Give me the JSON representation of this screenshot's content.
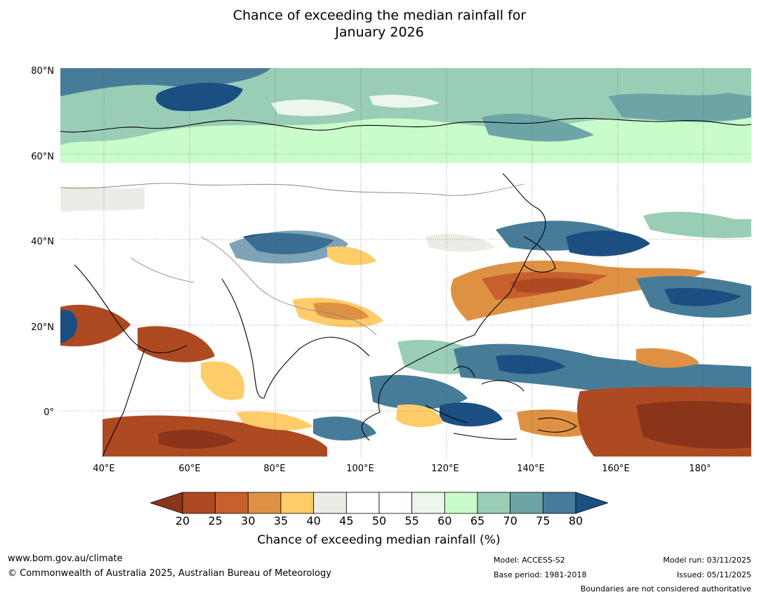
{
  "title": {
    "line1": "Chance of exceeding the median rainfall for",
    "line2": "January 2026"
  },
  "map": {
    "lat_labels": [
      "80°N",
      "60°N",
      "40°N",
      "20°N",
      "0°"
    ],
    "lon_labels": [
      "40°E",
      "60°E",
      "80°E",
      "100°E",
      "120°E",
      "140°E",
      "160°E",
      "180°"
    ],
    "lat_range": [
      -10,
      80
    ],
    "lon_range": [
      30,
      190
    ]
  },
  "colorbar": {
    "ticks": [
      "20",
      "25",
      "30",
      "35",
      "40",
      "45",
      "50",
      "55",
      "60",
      "65",
      "70",
      "75",
      "80"
    ],
    "colors": [
      "#ad4a22",
      "#c7602d",
      "#df9143",
      "#fecc69",
      "#ecebe5",
      "#ffffff",
      "#ffffff",
      "#ebf7ea",
      "#c9fccb",
      "#9acdb6",
      "#6da5a7",
      "#477c99"
    ],
    "under_color": "#8a3419",
    "over_color": "#1b4f82",
    "label": "Chance of exceeding median rainfall (%)"
  },
  "footer": {
    "website": "www.bom.gov.au/climate",
    "copyright": "© Commonwealth of Australia 2025, Australian Bureau of Meteorology",
    "model": "Model: ACCESS-S2",
    "base_period": "Base period: 1981-2018",
    "model_run": "Model run: 03/11/2025",
    "issued": "Issued: 05/11/2025",
    "disclaimer": "Boundaries are not considered authoritative"
  }
}
